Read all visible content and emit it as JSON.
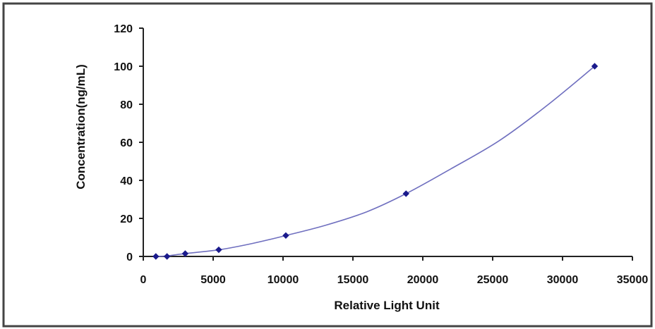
{
  "chart_data": {
    "type": "scatter",
    "title": "",
    "xlabel": "Relative Light Unit",
    "ylabel": "Concentration(ng/mL)",
    "xlim": [
      0,
      35000
    ],
    "ylim": [
      0,
      120
    ],
    "x_ticks": [
      "0",
      "5000",
      "10000",
      "15000",
      "20000",
      "25000",
      "30000",
      "35000"
    ],
    "y_ticks": [
      "0",
      "20",
      "40",
      "60",
      "80",
      "100",
      "120"
    ],
    "grid": false,
    "legend": "none",
    "points": [
      {
        "x": 900,
        "y": 0
      },
      {
        "x": 1700,
        "y": 0
      },
      {
        "x": 3000,
        "y": 1.5
      },
      {
        "x": 5400,
        "y": 3.5
      },
      {
        "x": 10200,
        "y": 11
      },
      {
        "x": 18800,
        "y": 33
      },
      {
        "x": 32300,
        "y": 100
      }
    ],
    "fit_curve": [
      [
        900,
        0
      ],
      [
        1700,
        0.3
      ],
      [
        3000,
        1.5
      ],
      [
        5400,
        3.5
      ],
      [
        7800,
        6.8
      ],
      [
        10200,
        11
      ],
      [
        13000,
        16.3
      ],
      [
        16000,
        23.5
      ],
      [
        18800,
        33
      ],
      [
        22000,
        46
      ],
      [
        25500,
        61
      ],
      [
        29000,
        80
      ],
      [
        32300,
        100
      ]
    ],
    "colors": {
      "series": "#1a1a8c",
      "curve": "#6f6fbf",
      "axis": "#222222",
      "frame": "#444444"
    }
  }
}
